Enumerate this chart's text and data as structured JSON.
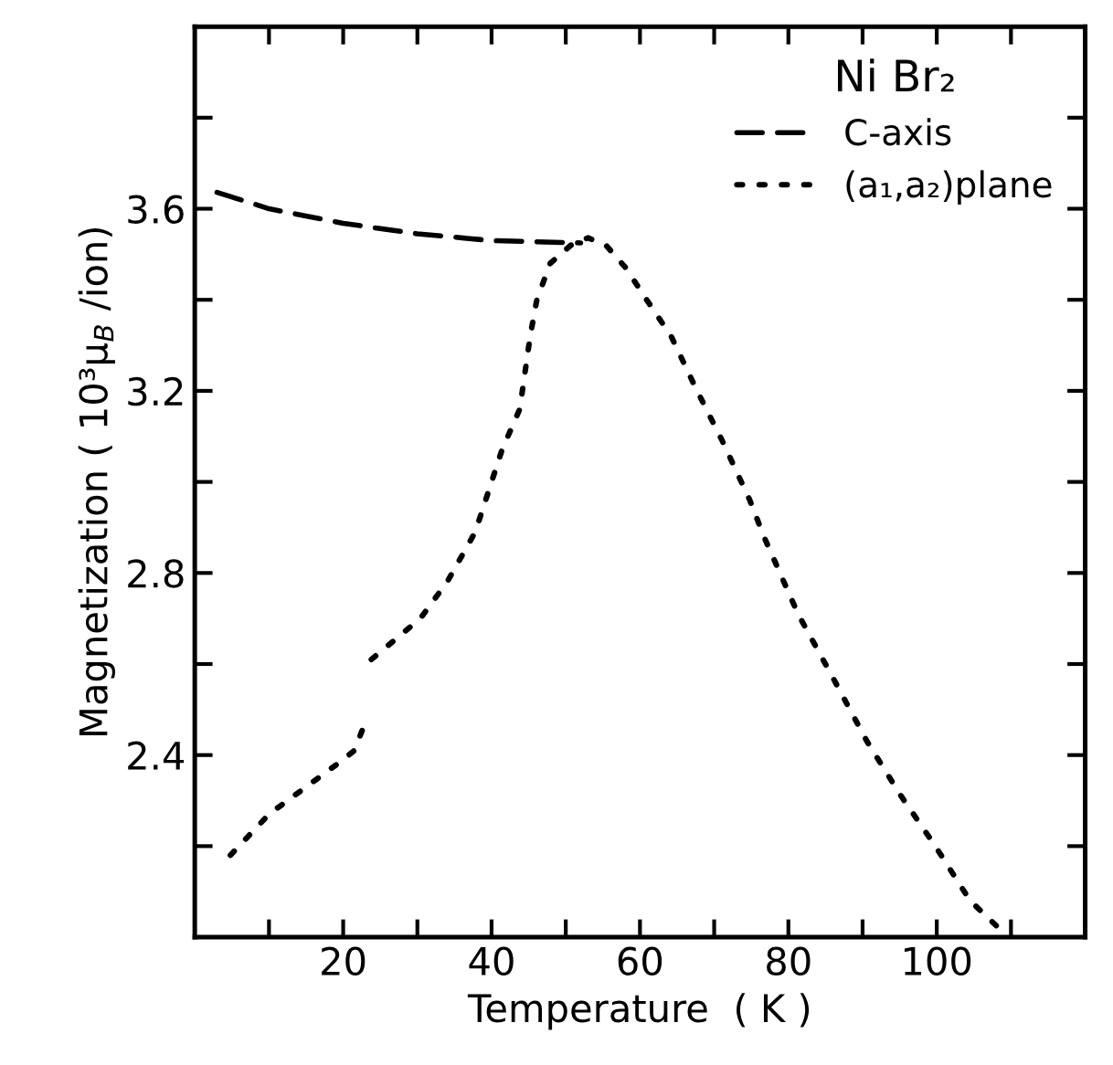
{
  "chart_data": {
    "type": "line",
    "xlabel": "Temperature  ( K )",
    "ylabel": "Magnetization ( 10³μ$_{B}$ /ion)",
    "legend_title": "Ni Br₂",
    "legend": "top right",
    "grid": false,
    "marker": "none",
    "xlim": [
      0,
      120
    ],
    "ylim": [
      2.0,
      4.0
    ],
    "xticks": [
      {
        "value": 10,
        "label": null
      },
      20,
      {
        "value": 30,
        "label": null
      },
      40,
      {
        "value": 50,
        "label": null
      },
      60,
      {
        "value": 70,
        "label": null
      },
      80,
      {
        "value": 90,
        "label": null
      },
      100,
      {
        "value": 110,
        "label": null
      }
    ],
    "yticks": [
      {
        "value": 2.2,
        "label": null
      },
      2.4,
      {
        "value": 2.6,
        "label": null
      },
      2.8,
      {
        "value": 3.0,
        "label": null
      },
      3.2,
      {
        "value": 3.4,
        "label": null
      },
      3.6,
      {
        "value": 3.8,
        "label": null
      }
    ],
    "series": [
      {
        "name": "C-axis",
        "color": "#000000",
        "line_style": "dashed",
        "x": [
          3,
          10,
          20,
          30,
          40,
          52
        ],
        "values": [
          3.636,
          3.6,
          3.568,
          3.545,
          3.53,
          3.525
        ]
      },
      {
        "name": "(a₁,a₂)plane",
        "color": "#000000",
        "line_style": "dotted",
        "x": [
          4.8,
          10,
          20,
          21.5,
          22.7,
          null,
          23.8,
          30.4,
          34,
          37.8,
          41.4,
          43.8,
          45.2,
          46.1,
          47.9,
          50.7,
          53,
          55.4,
          58.1,
          60.9,
          64.2,
          67.4,
          71.1,
          74.8,
          76.7,
          81.3,
          86,
          90.6,
          95.2,
          99.8,
          104.5,
          109
        ],
        "values": [
          2.18,
          2.27,
          2.39,
          2.41,
          2.46,
          null,
          2.61,
          2.7,
          2.78,
          2.89,
          3.07,
          3.16,
          3.32,
          3.4,
          3.48,
          3.52,
          3.536,
          3.52,
          3.47,
          3.4,
          3.32,
          3.21,
          3.09,
          2.96,
          2.88,
          2.71,
          2.57,
          2.43,
          2.31,
          2.2,
          2.08,
          2.01
        ]
      }
    ]
  }
}
